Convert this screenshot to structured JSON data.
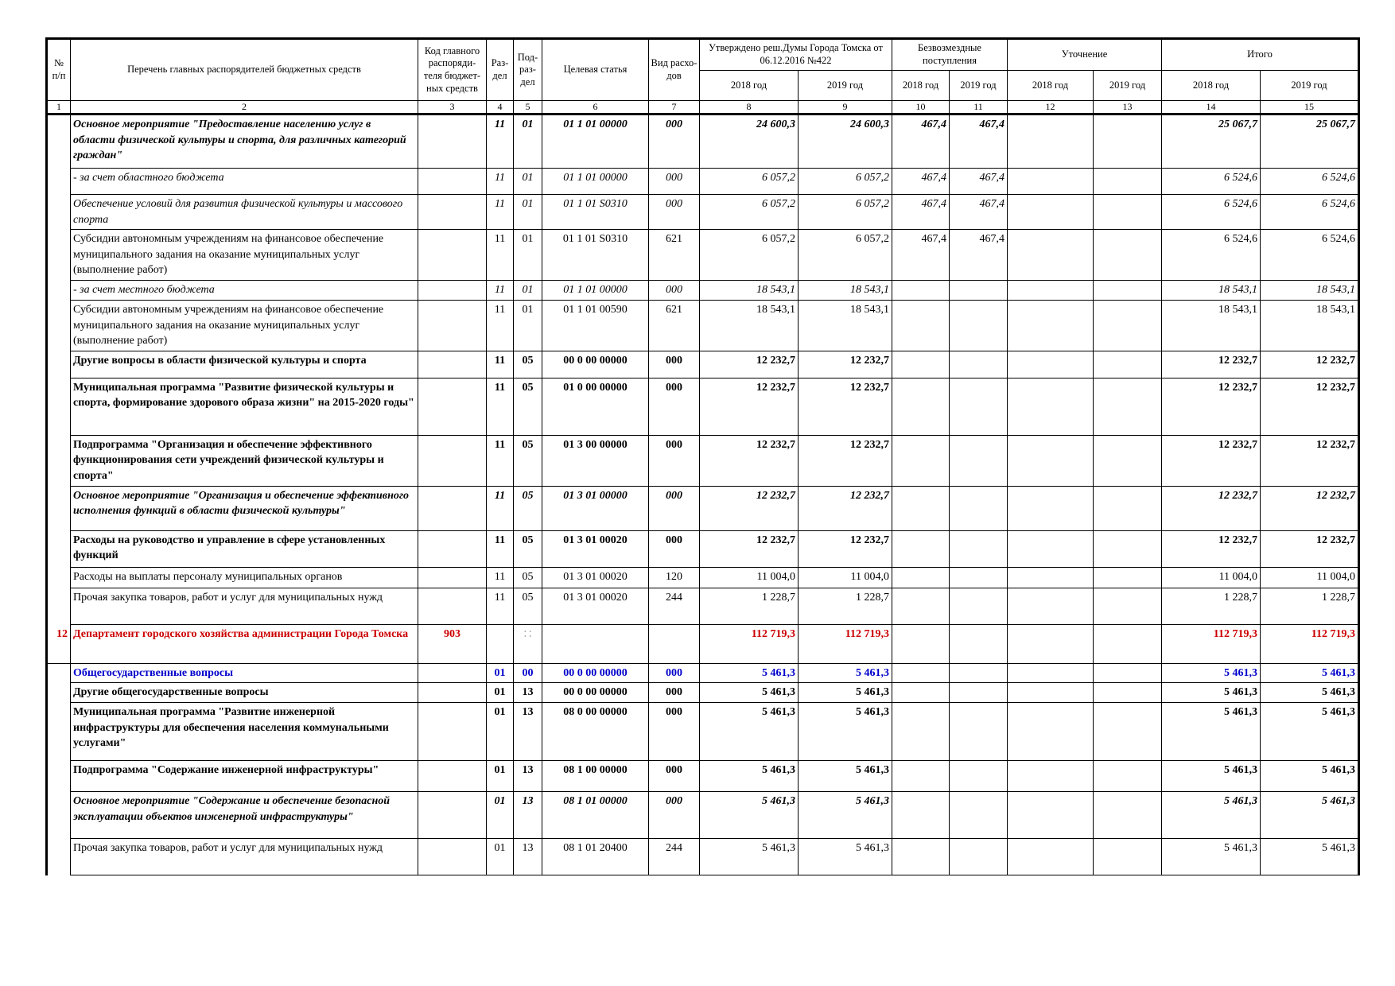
{
  "header": {
    "col_no": "№ п/п",
    "col_name": "Перечень главных распорядителей бюджетных средств",
    "col_code": "Код главного распоряди-теля бюджет-ных средств",
    "col_razdel": "Раз-дел",
    "col_podrazdel": "Под-раз-дел",
    "col_target": "Целевая статья",
    "col_vid": "Вид расхо-дов",
    "group_approved": "Утверждено реш.Думы Города Томска от 06.12.2016 №422",
    "group_free": "Безвозмездные поступления",
    "group_clarify": "Уточнение",
    "group_total": "Итого",
    "y2018": "2018 год",
    "y2019": "2019 год",
    "col_numbers": [
      "1",
      "2",
      "3",
      "4",
      "5",
      "6",
      "7",
      "8",
      "9",
      "10",
      "11",
      "12",
      "13",
      "14",
      "15"
    ]
  },
  "rows": [
    {
      "style": "bi",
      "name": "Основное мероприятие \"Предоставление населению услуг в области физической культуры и спорта, для различных категорий граждан\"",
      "code": "",
      "razdel": "11",
      "podrazdel": "01",
      "target": "01 1 01 00000",
      "vid": "000",
      "a2018": "24 600,3",
      "a2019": "24 600,3",
      "f2018": "467,4",
      "f2019": "467,4",
      "u2018": "",
      "u2019": "",
      "t2018": "25 067,7",
      "t2019": "25 067,7"
    },
    {
      "style": "it",
      "name": " - за счет областного бюджета",
      "code": "",
      "razdel": "11",
      "podrazdel": "01",
      "target": "01 1 01 00000",
      "vid": "000",
      "a2018": "6 057,2",
      "a2019": "6 057,2",
      "f2018": "467,4",
      "f2019": "467,4",
      "u2018": "",
      "u2019": "",
      "t2018": "6 524,6",
      "t2019": "6 524,6"
    },
    {
      "style": "it",
      "name": "  Обеспечение условий для развития физической культуры и массового спорта",
      "code": "",
      "razdel": "11",
      "podrazdel": "01",
      "target": "01 1 01 S0310",
      "vid": "000",
      "a2018": "6 057,2",
      "a2019": "6 057,2",
      "f2018": "467,4",
      "f2019": "467,4",
      "u2018": "",
      "u2019": "",
      "t2018": "6 524,6",
      "t2019": "6 524,6"
    },
    {
      "style": "nr",
      "name": "    Субсидии автономным учреждениям на финансовое обеспечение муниципального задания на оказание муниципальных услуг (выполнение работ)",
      "code": "",
      "razdel": "11",
      "podrazdel": "01",
      "target": "01 1 01 S0310",
      "vid": "621",
      "a2018": "6 057,2",
      "a2019": "6 057,2",
      "f2018": "467,4",
      "f2019": "467,4",
      "u2018": "",
      "u2019": "",
      "t2018": "6 524,6",
      "t2019": "6 524,6"
    },
    {
      "style": "it",
      "name": " - за счет местного бюджета",
      "code": "",
      "razdel": "11",
      "podrazdel": "01",
      "target": "01 1 01 00000",
      "vid": "000",
      "a2018": "18 543,1",
      "a2019": "18 543,1",
      "f2018": "",
      "f2019": "",
      "u2018": "",
      "u2019": "",
      "t2018": "18 543,1",
      "t2019": "18 543,1"
    },
    {
      "style": "nr",
      "name": "    Субсидии автономным учреждениям на финансовое обеспечение муниципального задания на оказание муниципальных услуг (выполнение работ)",
      "code": "",
      "razdel": "11",
      "podrazdel": "01",
      "target": "01 1 01 00590",
      "vid": "621",
      "a2018": "18 543,1",
      "a2019": "18 543,1",
      "f2018": "",
      "f2019": "",
      "u2018": "",
      "u2019": "",
      "t2018": "18 543,1",
      "t2019": "18 543,1"
    },
    {
      "style": "bl",
      "name": "Другие вопросы в области физической культуры и спорта",
      "code": "",
      "razdel": "11",
      "podrazdel": "05",
      "target": "00 0 00 00000",
      "vid": "000",
      "a2018": "12 232,7",
      "a2019": "12 232,7",
      "f2018": "",
      "f2019": "",
      "u2018": "",
      "u2019": "",
      "t2018": "12 232,7",
      "t2019": "12 232,7"
    },
    {
      "style": "bl",
      "name": "Муниципальная программа \"Развитие физической культуры и спорта, формирование здорового образа жизни\" на 2015-2020 годы\"",
      "code": "",
      "razdel": "11",
      "podrazdel": "05",
      "target": "01 0 00 00000",
      "vid": "000",
      "a2018": "12 232,7",
      "a2019": "12 232,7",
      "f2018": "",
      "f2019": "",
      "u2018": "",
      "u2019": "",
      "t2018": "12 232,7",
      "t2019": "12 232,7"
    },
    {
      "style": "bl",
      "name": "Подпрограмма \"Организация и обеспечение эффективного функционирования сети учреждений физической культуры и спорта\"",
      "code": "",
      "razdel": "11",
      "podrazdel": "05",
      "target": "01 3 00 00000",
      "vid": "000",
      "a2018": "12 232,7",
      "a2019": "12 232,7",
      "f2018": "",
      "f2019": "",
      "u2018": "",
      "u2019": "",
      "t2018": "12 232,7",
      "t2019": "12 232,7"
    },
    {
      "style": "bi",
      "name": " Основное мероприятие \"Организация и обеспечение эффективного исполнения функций в области физической культуры\"",
      "code": "",
      "razdel": "11",
      "podrazdel": "05",
      "target": "01 3 01 00000",
      "vid": "000",
      "a2018": "12 232,7",
      "a2019": "12 232,7",
      "f2018": "",
      "f2019": "",
      "u2018": "",
      "u2019": "",
      "t2018": "12 232,7",
      "t2019": "12 232,7"
    },
    {
      "style": "bd",
      "name": "  Расходы на руководство и управление в сфере установленных функций",
      "code": "",
      "razdel": "11",
      "podrazdel": "05",
      "target": "01 3 01 00020",
      "vid": "000",
      "a2018": "12 232,7",
      "a2019": "12 232,7",
      "f2018": "",
      "f2019": "",
      "u2018": "",
      "u2019": "",
      "t2018": "12 232,7",
      "t2019": "12 232,7"
    },
    {
      "style": "nr",
      "name": "    Расходы на выплаты персоналу муниципальных органов",
      "code": "",
      "razdel": "11",
      "podrazdel": "05",
      "target": "01 3 01 00020",
      "vid": "120",
      "a2018": "11 004,0",
      "a2019": "11 004,0",
      "f2018": "",
      "f2019": "",
      "u2018": "",
      "u2019": "",
      "t2018": "11 004,0",
      "t2019": "11 004,0"
    },
    {
      "style": "nr",
      "name": "    Прочая закупка товаров, работ и услуг для муниципальных нужд",
      "code": "",
      "razdel": "11",
      "podrazdel": "05",
      "target": "01 3 01 00020",
      "vid": "244",
      "a2018": "1 228,7",
      "a2019": "1 228,7",
      "f2018": "",
      "f2019": "",
      "u2018": "",
      "u2019": "",
      "t2018": "1 228,7",
      "t2019": "1 228,7"
    },
    {
      "style": "dept",
      "no": "12",
      "name": "Департамент городского хозяйства администрации Города Томска",
      "code": "903",
      "razdel": "",
      "podrazdel": "",
      "target": "",
      "vid": "",
      "a2018": "112 719,3",
      "a2019": "112 719,3",
      "f2018": "",
      "f2019": "",
      "u2018": "",
      "u2019": "",
      "t2018": "112 719,3",
      "t2019": "112 719,3"
    },
    {
      "style": "blue",
      "name": "Общегосударственные вопросы",
      "code": "",
      "razdel": "01",
      "podrazdel": "00",
      "target": "00 0 00 00000",
      "vid": "000",
      "a2018": "5 461,3",
      "a2019": "5 461,3",
      "f2018": "",
      "f2019": "",
      "u2018": "",
      "u2019": "",
      "t2018": "5 461,3",
      "t2019": "5 461,3"
    },
    {
      "style": "bl",
      "name": "Другие общегосударственные вопросы",
      "code": "",
      "razdel": "01",
      "podrazdel": "13",
      "target": "00 0 00 00000",
      "vid": "000",
      "a2018": "5 461,3",
      "a2019": "5 461,3",
      "f2018": "",
      "f2019": "",
      "u2018": "",
      "u2019": "",
      "t2018": "5 461,3",
      "t2019": "5 461,3"
    },
    {
      "style": "bl",
      "name": "Муниципальная программа \"Развитие инженерной инфраструктуры для обеспечения населения коммунальными услугами\"",
      "code": "",
      "razdel": "01",
      "podrazdel": "13",
      "target": "08 0 00 00000",
      "vid": "000",
      "a2018": "5 461,3",
      "a2019": "5 461,3",
      "f2018": "",
      "f2019": "",
      "u2018": "",
      "u2019": "",
      "t2018": "5 461,3",
      "t2019": "5 461,3"
    },
    {
      "style": "bl",
      "name": "Подпрограмма \"Содержание инженерной инфраструктуры\"",
      "code": "",
      "razdel": "01",
      "podrazdel": "13",
      "target": "08 1 00 00000",
      "vid": "000",
      "a2018": "5 461,3",
      "a2019": "5 461,3",
      "f2018": "",
      "f2019": "",
      "u2018": "",
      "u2019": "",
      "t2018": "5 461,3",
      "t2019": "5 461,3"
    },
    {
      "style": "bi",
      "name": " Основное мероприятие \"Содержание и обеспечение безопасной эксплуатации объектов инженерной инфраструктуры\"",
      "code": "",
      "razdel": "01",
      "podrazdel": "13",
      "target": "08 1 01 00000",
      "vid": "000",
      "a2018": "5 461,3",
      "a2019": "5 461,3",
      "f2018": "",
      "f2019": "",
      "u2018": "",
      "u2019": "",
      "t2018": "5 461,3",
      "t2019": "5 461,3"
    },
    {
      "style": "nr",
      "name": "    Прочая закупка товаров, работ и услуг для муниципальных нужд",
      "code": "",
      "razdel": "01",
      "podrazdel": "13",
      "target": "08 1 01 20400",
      "vid": "244",
      "a2018": "5 461,3",
      "a2019": "5 461,3",
      "f2018": "",
      "f2019": "",
      "u2018": "",
      "u2019": "",
      "t2018": "5 461,3",
      "t2019": "5 461,3"
    }
  ]
}
